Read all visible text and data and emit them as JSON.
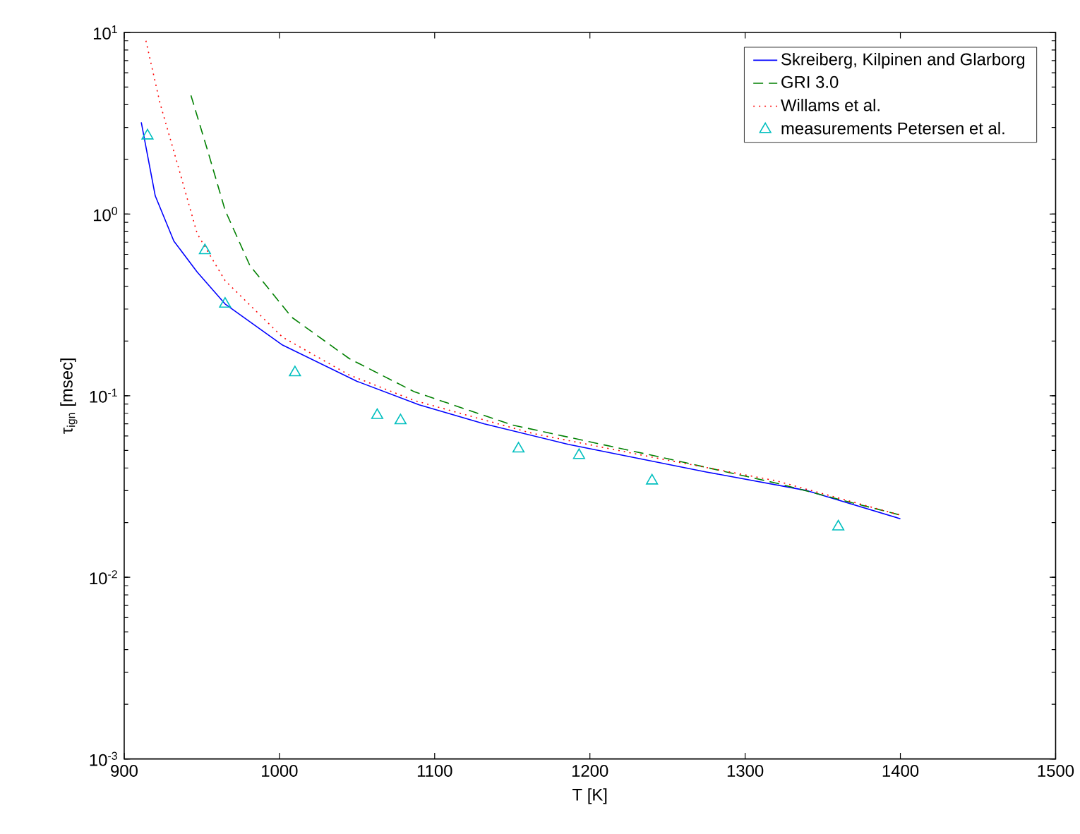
{
  "chart_data": {
    "type": "line",
    "xlabel": "T [K]",
    "ylabel": "τ$_{ign}$ [msec]",
    "log": "y",
    "xlim": [
      900,
      1500
    ],
    "ylim": [
      0.001,
      10
    ],
    "xticks": [
      900,
      1000,
      1100,
      1200,
      1300,
      1400,
      1500
    ],
    "yticks": [
      {
        "value": 0.001,
        "label": "10$^{-3}$"
      },
      {
        "value": 0.01,
        "label": "10$^{-2}$"
      },
      {
        "value": 0.1,
        "label": "10$^{-1}$"
      },
      {
        "value": 1,
        "label": "10$^{0}$"
      },
      {
        "value": 10,
        "label": "10$^{1}$"
      }
    ],
    "grid": false,
    "legend": "top right",
    "series": [
      {
        "name": "Skreiberg, Kilpinen and Glarborg",
        "line_style": "solid",
        "color": "#0000ff",
        "x": [
          911,
          920,
          932,
          947,
          965,
          1002,
          1050,
          1090,
          1132,
          1186,
          1275,
          1340,
          1400
        ],
        "values": [
          3.2,
          1.26,
          0.71,
          0.48,
          0.32,
          0.19,
          0.12,
          0.089,
          0.07,
          0.054,
          0.038,
          0.03,
          0.021
        ]
      },
      {
        "name": "GRI 3.0",
        "line_style": "dashed",
        "color": "#008000",
        "x": [
          943,
          954,
          965,
          981,
          1008,
          1045,
          1087,
          1150,
          1250,
          1320,
          1400
        ],
        "values": [
          4.5,
          2.2,
          1.05,
          0.52,
          0.27,
          0.16,
          0.105,
          0.069,
          0.045,
          0.033,
          0.022
        ]
      },
      {
        "name": "Willams et al.",
        "line_style": "dotted",
        "color": "#ff0000",
        "x": [
          914,
          923,
          935,
          947,
          965,
          1002,
          1045,
          1087,
          1163,
          1245,
          1320,
          1400
        ],
        "values": [
          9,
          4.1,
          1.8,
          0.78,
          0.43,
          0.21,
          0.13,
          0.094,
          0.062,
          0.045,
          0.034,
          0.022
        ]
      },
      {
        "name": "measurements Petersen et al.",
        "type": "scatter",
        "marker": "triangle",
        "color": "#00bfbf",
        "x": [
          915,
          952,
          965,
          1010,
          1063,
          1078,
          1154,
          1193,
          1240,
          1360
        ],
        "values": [
          2.7,
          0.63,
          0.32,
          0.134,
          0.078,
          0.073,
          0.051,
          0.047,
          0.034,
          0.019
        ]
      }
    ]
  }
}
